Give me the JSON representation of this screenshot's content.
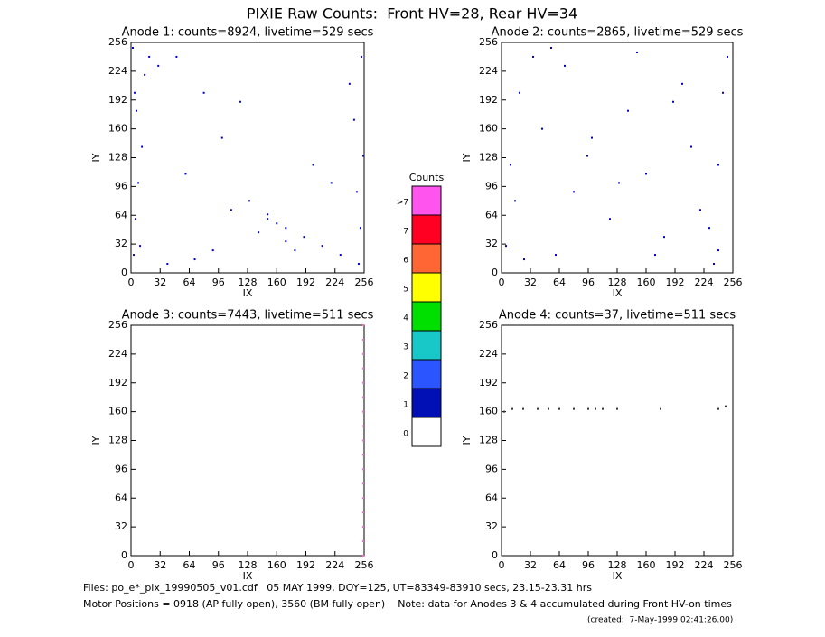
{
  "title": "PIXIE Raw Counts:  Front HV=28, Rear HV=34",
  "chart_data": [
    {
      "type": "scatter",
      "title": "Anode 1: counts=8924, livetime=529 secs",
      "xlabel": "IX",
      "ylabel": "IY",
      "xlim": [
        0,
        256
      ],
      "ylim": [
        0,
        256
      ],
      "xticks": [
        0,
        32,
        64,
        96,
        128,
        160,
        192,
        224,
        256
      ],
      "yticks": [
        0,
        32,
        64,
        96,
        128,
        160,
        192,
        224,
        256
      ],
      "color": "#0000cc",
      "x": [
        3,
        5,
        8,
        12,
        6,
        15,
        20,
        2,
        10,
        4,
        250,
        252,
        248,
        255,
        245,
        240,
        253,
        30,
        50,
        70,
        90,
        110,
        130,
        150,
        170,
        190,
        210,
        230,
        140,
        160,
        150,
        170,
        180,
        60,
        200,
        100,
        120,
        80,
        40,
        220
      ],
      "y": [
        20,
        60,
        100,
        140,
        180,
        220,
        240,
        250,
        30,
        200,
        10,
        50,
        90,
        130,
        170,
        210,
        240,
        230,
        240,
        15,
        25,
        70,
        80,
        60,
        50,
        40,
        30,
        20,
        45,
        55,
        65,
        35,
        25,
        110,
        120,
        150,
        190,
        200,
        10,
        100
      ]
    },
    {
      "type": "scatter",
      "title": "Anode 2: counts=2865, livetime=529 secs",
      "xlabel": "IX",
      "ylabel": "IY",
      "xlim": [
        0,
        256
      ],
      "ylim": [
        0,
        256
      ],
      "xticks": [
        0,
        32,
        64,
        96,
        128,
        160,
        192,
        224,
        256
      ],
      "yticks": [
        0,
        32,
        64,
        96,
        128,
        160,
        192,
        224,
        256
      ],
      "color": "#0000cc",
      "x": [
        5,
        10,
        20,
        35,
        60,
        80,
        100,
        120,
        140,
        160,
        180,
        200,
        220,
        235,
        240,
        245,
        250,
        15,
        45,
        70,
        95,
        130,
        170,
        210,
        230,
        25,
        55,
        150,
        190,
        240
      ],
      "y": [
        30,
        120,
        200,
        240,
        20,
        90,
        150,
        60,
        180,
        110,
        40,
        210,
        70,
        10,
        25,
        200,
        240,
        80,
        160,
        230,
        130,
        100,
        20,
        140,
        50,
        15,
        250,
        245,
        190,
        120
      ]
    },
    {
      "type": "scatter",
      "title": "Anode 3: counts=7443, livetime=511 secs",
      "xlabel": "IX",
      "ylabel": "IY",
      "xlim": [
        0,
        256
      ],
      "ylim": [
        0,
        256
      ],
      "xticks": [
        0,
        32,
        64,
        96,
        128,
        160,
        192,
        224,
        256
      ],
      "yticks": [
        0,
        32,
        64,
        96,
        128,
        160,
        192,
        224,
        256
      ],
      "color": "#ff66cc",
      "x": [
        255,
        255,
        255,
        255,
        255,
        255,
        255,
        255,
        255,
        255,
        255,
        255,
        255,
        255,
        255,
        255,
        255
      ],
      "y": [
        0,
        16,
        32,
        48,
        64,
        80,
        96,
        112,
        128,
        144,
        160,
        176,
        192,
        208,
        224,
        240,
        256
      ]
    },
    {
      "type": "scatter",
      "title": "Anode 4: counts=37, livetime=511 secs",
      "xlabel": "IX",
      "ylabel": "IY",
      "xlim": [
        0,
        256
      ],
      "ylim": [
        0,
        256
      ],
      "xticks": [
        0,
        32,
        64,
        96,
        128,
        160,
        192,
        224,
        256
      ],
      "yticks": [
        0,
        32,
        64,
        96,
        128,
        160,
        192,
        224,
        256
      ],
      "color": "#333333",
      "x": [
        3,
        12,
        24,
        40,
        52,
        64,
        80,
        96,
        104,
        112,
        128,
        176,
        240,
        248
      ],
      "y": [
        160,
        163,
        163,
        163,
        163,
        163,
        163,
        163,
        163,
        163,
        163,
        163,
        163,
        166
      ]
    }
  ],
  "colorbar": {
    "title": "Counts",
    "levels": [
      {
        "label": "0",
        "color": "#ffffff"
      },
      {
        "label": "1",
        "color": "#0010b4"
      },
      {
        "label": "2",
        "color": "#2a55ff"
      },
      {
        "label": "3",
        "color": "#18c8c8"
      },
      {
        "label": "4",
        "color": "#00e000"
      },
      {
        "label": "5",
        "color": "#ffff00"
      },
      {
        "label": "6",
        "color": "#ff6633"
      },
      {
        "label": "7",
        "color": "#ff0022"
      },
      {
        "label": ">7",
        "color": "#ff55ee"
      }
    ]
  },
  "footer": {
    "files": "Files: po_e*_pix_19990505_v01.cdf   05 MAY 1999, DOY=125, UT=83349-83910 secs, 23.15-23.31 hrs",
    "motor": "Motor Positions = 0918 (AP fully open), 3560 (BM fully open)    Note: data for Anodes 3 & 4 accumulated during Front HV-on times",
    "created": "(created:  7-May-1999 02:41:26.00)"
  }
}
